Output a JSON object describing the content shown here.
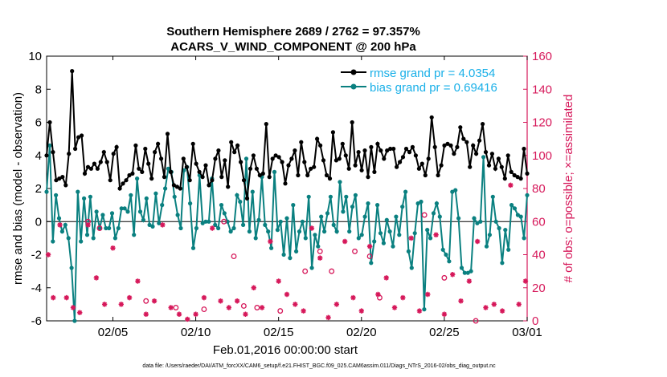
{
  "chart_data": {
    "type": "line",
    "title_line1": "Southern Hemisphere 2689 / 2762 = 97.357%",
    "title_line2": "ACARS_V_WIND_COMPONENT @ 200 hPa",
    "xlabel": "Feb.01,2016 00:00:00 start",
    "ylabel_left": "rmse and bias (model - observation)",
    "ylabel_right": "# of obs: o=possible; ×=assimilated",
    "footnote": "data file: /Users/raeder/DAI/ATM_forcXX/CAM6_setup/f.e21.FHIST_BGC.f09_025.CAM6assim.011/Diags_NTrS_2016-02/obs_diag_output.nc",
    "xlim": [
      1,
      30
    ],
    "ylim_left": [
      -6,
      10
    ],
    "ylim_right": [
      0,
      160
    ],
    "x_ticks": [
      {
        "pos": 5,
        "label": "02/05"
      },
      {
        "pos": 10,
        "label": "02/10"
      },
      {
        "pos": 15,
        "label": "02/15"
      },
      {
        "pos": 20,
        "label": "02/20"
      },
      {
        "pos": 25,
        "label": "02/25"
      },
      {
        "pos": 30,
        "label": "03/01"
      }
    ],
    "y_ticks_left": [
      "-6",
      "-4",
      "-2",
      "0",
      "2",
      "4",
      "6",
      "8",
      "10"
    ],
    "y_ticks_right": [
      "0",
      "20",
      "40",
      "60",
      "80",
      "100",
      "120",
      "140",
      "160"
    ],
    "colors": {
      "rmse": "#000000",
      "bias": "#0a8080",
      "obs": "#d6185a",
      "legend_text": "#1ab0e8"
    },
    "series": [
      {
        "name": "rmse grand pr = 4.0354",
        "axis": "left",
        "values": [
          4.0,
          6.0,
          4.2,
          2.5,
          2.6,
          2.7,
          2.2,
          4.1,
          9.1,
          4.4,
          5.1,
          5.2,
          2.9,
          3.3,
          3.2,
          3.5,
          3.2,
          3.6,
          4.2,
          3.6,
          2.5,
          4.1,
          4.5,
          2.0,
          2.3,
          2.5,
          2.8,
          2.9,
          4.6,
          3.2,
          3.0,
          4.4,
          3.5,
          2.6,
          4.2,
          4.7,
          3.8,
          2.7,
          5.3,
          3.0,
          2.2,
          2.1,
          2.0,
          3.8,
          3.3,
          2.5,
          4.7,
          3.5,
          3.0,
          2.7,
          3.4,
          2.2,
          2.5,
          3.8,
          4.3,
          2.7,
          3.7,
          2.1,
          4.8,
          4.2,
          4.6,
          3.6,
          2.5,
          1.4,
          3.2,
          4.0,
          3.2,
          2.8,
          2.9,
          5.9,
          2.7,
          3.8,
          4.0,
          3.9,
          3.6,
          2.3,
          3.4,
          3.8,
          4.3,
          2.8,
          4.8,
          3.6,
          2.8,
          3.2,
          3.3,
          5.0,
          4.6,
          3.7,
          2.8,
          2.6,
          5.4,
          3.7,
          3.8,
          4.7,
          4.0,
          3.2,
          6.0,
          3.4,
          4.2,
          3.1,
          4.3,
          2.7,
          4.5,
          3.0,
          4.7,
          4.3,
          3.8,
          4.3,
          4.4,
          4.4,
          3.3,
          3.6,
          3.9,
          4.4,
          4.2,
          4.5,
          4.0,
          3.2,
          3.5,
          2.8,
          3.8,
          6.3,
          4.5,
          2.8,
          3.4,
          4.6,
          4.7,
          4.6,
          4.1,
          4.5,
          5.7,
          5.0,
          4.8,
          3.3,
          4.6,
          4.1,
          4.9,
          5.9,
          4.2,
          3.4,
          4.1,
          3.2,
          3.8,
          3.3,
          2.6,
          4.0,
          3.0,
          2.8,
          2.7,
          2.6,
          4.4,
          2.9
        ]
      },
      {
        "name": "bias grand pr = 0.69416",
        "axis": "left",
        "values": [
          1.8,
          4.6,
          -1.2,
          1.6,
          0.2,
          -0.6,
          -0.2,
          -1.0,
          -2.8,
          -6.0,
          1.8,
          -1.2,
          1.4,
          -0.8,
          1.5,
          -1.0,
          0.6,
          -0.4,
          0.4,
          -0.4,
          -0.4,
          0.5,
          -1.0,
          -0.4,
          0.8,
          0.8,
          0.6,
          1.6,
          -0.8,
          2.6,
          0.6,
          0.1,
          1.4,
          -0.2,
          -0.3,
          1.7,
          -0.1,
          1.0,
          2.0,
          3.2,
          3.0,
          1.5,
          0.4,
          -0.4,
          3.1,
          3.3,
          1.1,
          -1.6,
          -0.4,
          2.8,
          -0.1,
          0.0,
          0.0,
          2.6,
          -0.2,
          -0.4,
          1.0,
          0.5,
          0.0,
          -0.6,
          -0.4,
          1.6,
          1.2,
          -0.2,
          3.8,
          -0.6,
          1.8,
          -1.0,
          0.1,
          2.7,
          -0.2,
          -0.6,
          -1.6,
          3.0,
          -0.5,
          0.0,
          -2.0,
          0.2,
          -2.2,
          1.0,
          -1.8,
          -0.6,
          0.0,
          -1.0,
          1.5,
          -2.8,
          -0.8,
          -1.5,
          0.3,
          -0.6,
          0.5,
          1.5,
          -0.2,
          -0.6,
          2.4,
          0.6,
          1.5,
          -0.6,
          0.9,
          1.6,
          -1.0,
          -0.8,
          0.3,
          1.1,
          -2.5,
          -1.2,
          1.0,
          -0.7,
          -1.3,
          0.1,
          -0.6,
          -1.5,
          0.3,
          -0.8,
          0.9,
          1.8,
          -1.8,
          -2.8,
          -0.7,
          1.1,
          1.2,
          -5.3,
          -0.5,
          -1.0,
          0.5,
          1.1,
          0.3,
          -1.7,
          -2.0,
          -2.4,
          1.8,
          1.9,
          0.2,
          -2.8,
          -3.1,
          -3.1,
          -3.0,
          0.2,
          -0.1,
          0.0,
          3.9,
          -1.5,
          -0.8,
          1.5,
          0.0,
          -0.4,
          -2.5,
          -0.5,
          -1.7,
          1.0,
          0.8,
          0.4,
          0.3,
          -1.0,
          1.6
        ]
      },
      {
        "name": "obs possible",
        "axis": "right",
        "marker": "circle",
        "x": [
          3.5,
          4.2,
          7.0,
          8.8,
          10.5,
          11.7,
          12.3,
          12.9,
          13.7,
          15.1,
          16.6,
          17.5,
          18.2,
          19.6,
          20.5,
          21.1,
          23.8,
          25.0,
          26.9
        ],
        "values": [
          60,
          56,
          12,
          8,
          7,
          60,
          39,
          9,
          8,
          6,
          30,
          42,
          30,
          42,
          39,
          14,
          64,
          26,
          0
        ]
      },
      {
        "name": "obs assimilated",
        "axis": "right",
        "marker": "asterisk",
        "x": [
          1.1,
          1.4,
          1.8,
          2.2,
          2.6,
          3.0,
          3.5,
          4.0,
          4.5,
          5.0,
          5.5,
          6.0,
          6.5,
          7.0,
          7.5,
          8.0,
          8.5,
          9.0,
          9.5,
          10.0,
          10.5,
          11.0,
          11.5,
          12.0,
          12.5,
          13.0,
          13.5,
          14.0,
          14.5,
          15.0,
          15.5,
          16.0,
          16.5,
          17.0,
          17.5,
          18.0,
          18.5,
          19.0,
          19.5,
          20.0,
          20.5,
          21.0,
          21.5,
          22.0,
          22.5,
          23.0,
          23.5,
          24.0,
          24.5,
          25.0,
          25.5,
          26.0,
          26.5,
          27.0,
          27.5,
          28.0,
          28.5,
          29.0,
          29.5,
          29.9
        ],
        "values": [
          40,
          14,
          58,
          14,
          8,
          5,
          58,
          26,
          10,
          44,
          10,
          14,
          24,
          4,
          12,
          58,
          8,
          4,
          1,
          4,
          14,
          56,
          12,
          8,
          12,
          4,
          20,
          8,
          48,
          24,
          16,
          10,
          6,
          56,
          38,
          2,
          10,
          48,
          14,
          6,
          45,
          16,
          26,
          8,
          14,
          50,
          6,
          16,
          52,
          4,
          28,
          12,
          24,
          48,
          8,
          10,
          6,
          82,
          10,
          24
        ]
      }
    ]
  }
}
